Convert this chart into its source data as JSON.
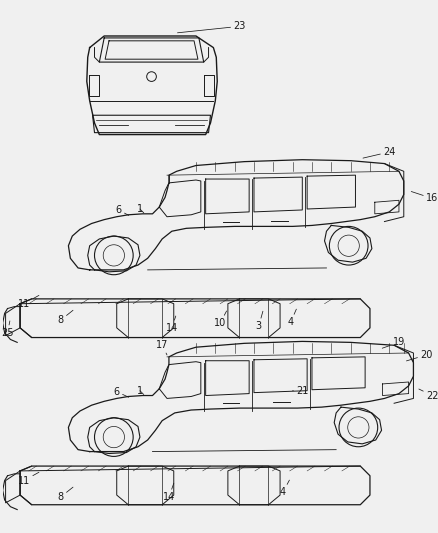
{
  "bg_color": "#f0f0f0",
  "line_color": "#1a1a1a",
  "text_color": "#1a1a1a",
  "fig_width": 4.39,
  "fig_height": 5.33,
  "dpi": 100,
  "annotation_fontsize": 7.0,
  "annotation_lw": 0.55
}
